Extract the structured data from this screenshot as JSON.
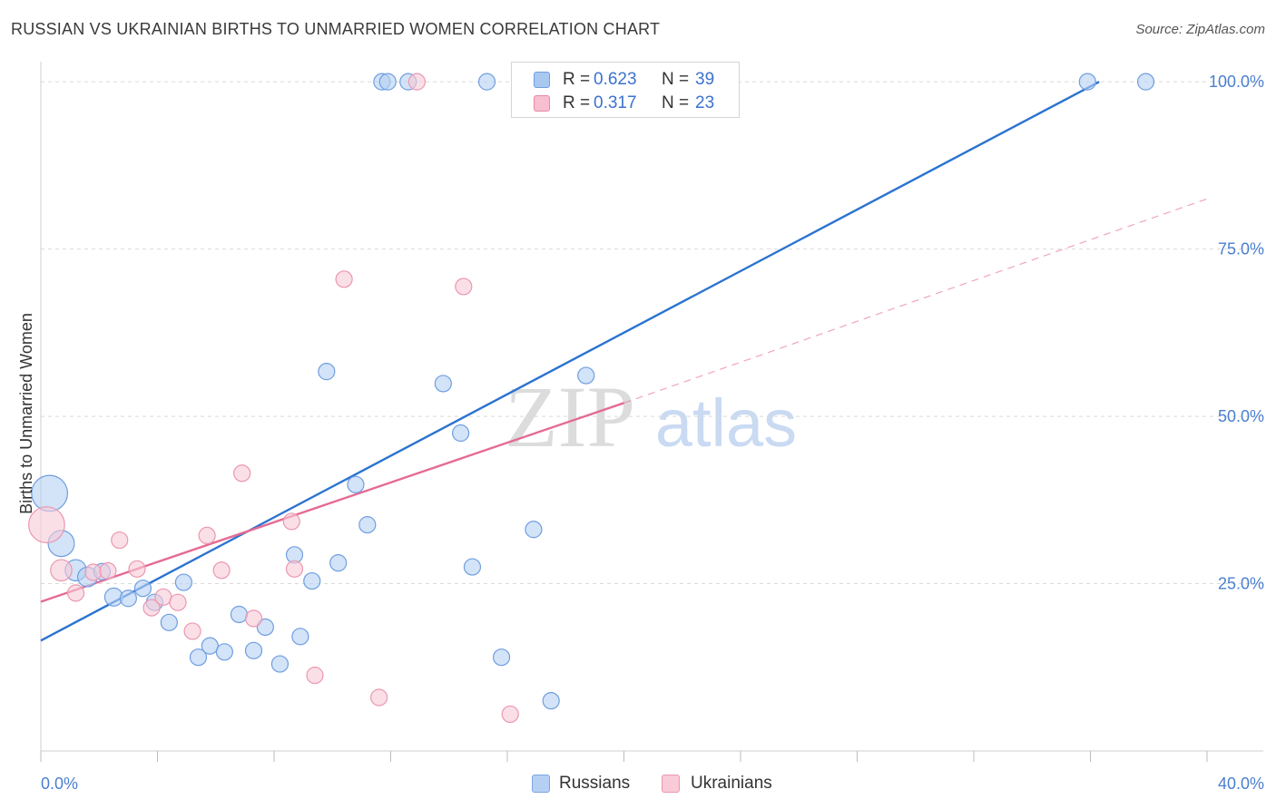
{
  "title": "RUSSIAN VS UKRAINIAN BIRTHS TO UNMARRIED WOMEN CORRELATION CHART",
  "source": "Source: ZipAtlas.com",
  "watermark": {
    "zip": "ZIP",
    "atlas": "atlas"
  },
  "legend_stats": [
    {
      "r_label": "R =",
      "r_value": "0.623",
      "n_label": "N =",
      "n_value": "39",
      "color": "#a9c8f0",
      "border": "#6f9ee0"
    },
    {
      "r_label": "R =",
      "r_value": "0.317",
      "n_label": "N =",
      "n_value": "23",
      "color": "#f7bfcf",
      "border": "#e98aa6"
    }
  ],
  "legend_series": [
    {
      "label": "Russians",
      "color": "#b6d0f4",
      "border": "#7aa4e2"
    },
    {
      "label": "Ukrainians",
      "color": "#f9cad7",
      "border": "#eb97b0"
    }
  ],
  "chart_data": {
    "type": "scatter",
    "xlabel": "",
    "ylabel": "Births to Unmarried Women",
    "xlim": [
      0,
      40
    ],
    "ylim": [
      0,
      103
    ],
    "x_tick_labels": {
      "min": "0.0%",
      "max": "40.0%"
    },
    "y_ticks": [
      25,
      50,
      75,
      100
    ],
    "y_tick_labels": [
      "25.0%",
      "50.0%",
      "75.0%",
      "100.0%"
    ],
    "grid": true,
    "colors": {
      "russians": "#4f86d9",
      "ukrainians": "#e8799a",
      "russians_line": "#2b73d0",
      "ukrainians_line": "#e56b93"
    },
    "series": [
      {
        "name": "Russians",
        "points": [
          [
            0.3,
            38.5,
            2.2
          ],
          [
            0.7,
            31.0,
            1.6
          ],
          [
            1.2,
            27.0,
            1.3
          ],
          [
            1.6,
            26.0,
            1.2
          ],
          [
            2.1,
            26.8,
            1.0
          ],
          [
            2.5,
            23.0,
            1.1
          ],
          [
            3.0,
            22.8,
            1.0
          ],
          [
            3.5,
            24.3,
            1.0
          ],
          [
            3.9,
            22.2,
            1.0
          ],
          [
            4.4,
            19.2,
            1.0
          ],
          [
            4.9,
            25.2,
            1.0
          ],
          [
            5.4,
            14.0,
            1.0
          ],
          [
            5.8,
            15.7,
            1.0
          ],
          [
            6.3,
            14.8,
            1.0
          ],
          [
            6.8,
            20.4,
            1.0
          ],
          [
            7.3,
            15.0,
            1.0
          ],
          [
            7.7,
            18.5,
            1.0
          ],
          [
            8.2,
            13.0,
            1.0
          ],
          [
            8.7,
            29.3,
            1.0
          ],
          [
            8.9,
            17.1,
            1.0
          ],
          [
            9.3,
            25.4,
            1.0
          ],
          [
            9.8,
            56.7,
            1.0
          ],
          [
            10.2,
            28.1,
            1.0
          ],
          [
            10.8,
            39.8,
            1.0
          ],
          [
            11.2,
            33.8,
            1.0
          ],
          [
            11.7,
            100.0,
            1.0
          ],
          [
            11.9,
            100.0,
            1.0
          ],
          [
            12.6,
            100.0,
            1.0
          ],
          [
            13.8,
            54.9,
            1.0
          ],
          [
            14.4,
            47.5,
            1.0
          ],
          [
            14.8,
            27.5,
            1.0
          ],
          [
            15.3,
            100.0,
            1.0
          ],
          [
            15.8,
            14.0,
            1.0
          ],
          [
            16.9,
            33.1,
            1.0
          ],
          [
            17.5,
            7.5,
            1.0
          ],
          [
            18.7,
            56.1,
            1.0
          ],
          [
            19.4,
            100.0,
            1.0
          ],
          [
            35.9,
            100.0,
            1.0
          ],
          [
            37.9,
            100.0,
            1.0
          ]
        ]
      },
      {
        "name": "Ukrainians",
        "points": [
          [
            0.2,
            33.8,
            2.2
          ],
          [
            0.7,
            27.0,
            1.3
          ],
          [
            1.2,
            23.6,
            1.0
          ],
          [
            1.8,
            26.7,
            1.0
          ],
          [
            2.3,
            26.9,
            1.0
          ],
          [
            2.7,
            31.5,
            1.0
          ],
          [
            3.3,
            27.2,
            1.0
          ],
          [
            3.8,
            21.4,
            1.0
          ],
          [
            4.2,
            23.0,
            1.0
          ],
          [
            4.7,
            22.2,
            1.0
          ],
          [
            5.2,
            17.9,
            1.0
          ],
          [
            5.7,
            32.2,
            1.0
          ],
          [
            6.2,
            27.0,
            1.0
          ],
          [
            6.9,
            41.5,
            1.0
          ],
          [
            7.3,
            19.8,
            1.0
          ],
          [
            8.6,
            34.3,
            1.0
          ],
          [
            8.7,
            27.2,
            1.0
          ],
          [
            9.4,
            11.3,
            1.0
          ],
          [
            10.4,
            70.5,
            1.0
          ],
          [
            11.6,
            8.0,
            1.0
          ],
          [
            12.9,
            100.0,
            1.0
          ],
          [
            14.5,
            69.4,
            1.0
          ],
          [
            16.1,
            5.5,
            1.0
          ]
        ]
      }
    ],
    "trendlines": [
      {
        "name": "Russians",
        "from": [
          0,
          16.5
        ],
        "to": [
          36.3,
          100.0
        ],
        "dashed_to": null
      },
      {
        "name": "Ukrainians",
        "from": [
          0,
          22.3
        ],
        "to": [
          20.0,
          52.0
        ],
        "dashed_to": [
          40.0,
          82.5
        ]
      }
    ]
  }
}
